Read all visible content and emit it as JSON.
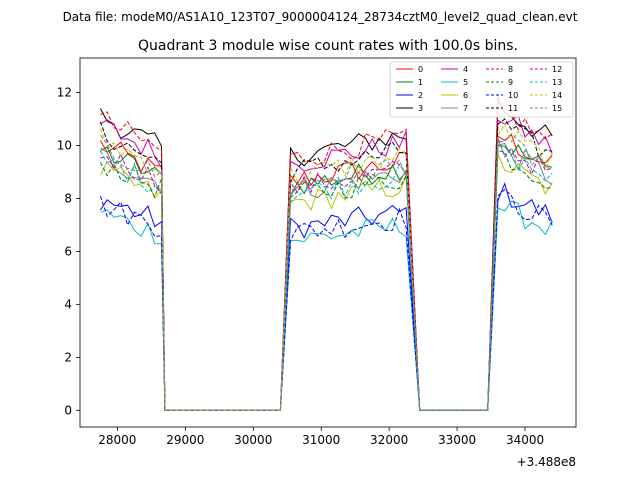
{
  "suptitle": "Data file: modeM0/AS1A10_123T07_9000004124_28734cztM0_level2_quad_clean.evt",
  "chart_data": {
    "type": "line",
    "title": "Quadrant 3 module wise count rates with 100.0s bins.",
    "xlabel": "",
    "ylabel": "",
    "x_offset_label": "+3.488e8",
    "xlim": [
      27450,
      34750
    ],
    "ylim": [
      -0.63,
      13.3
    ],
    "xticks": [
      28000,
      29000,
      30000,
      31000,
      32000,
      33000,
      34000
    ],
    "xtick_labels": [
      "28000",
      "29000",
      "30000",
      "31000",
      "32000",
      "33000",
      "34000"
    ],
    "yticks": [
      0,
      2,
      4,
      6,
      8,
      10,
      12
    ],
    "ytick_labels": [
      "0",
      "2",
      "4",
      "6",
      "8",
      "10",
      "12"
    ],
    "grid": false,
    "legend_position": "top-right",
    "series": [
      {
        "name": "0",
        "color": "#ff0000",
        "dash": "solid",
        "level": 9.3
      },
      {
        "name": "1",
        "color": "#008000",
        "dash": "solid",
        "level": 9.1
      },
      {
        "name": "2",
        "color": "#0000ff",
        "dash": "solid",
        "level": 7.4
      },
      {
        "name": "3",
        "color": "#000000",
        "dash": "solid",
        "level": 10.3
      },
      {
        "name": "4",
        "color": "#bf00bf",
        "dash": "solid",
        "level": 10.0
      },
      {
        "name": "5",
        "color": "#00bfbf",
        "dash": "solid",
        "level": 6.9
      },
      {
        "name": "6",
        "color": "#bfbf00",
        "dash": "solid",
        "level": 8.4
      },
      {
        "name": "7",
        "color": "#808080",
        "dash": "solid",
        "level": 8.9
      },
      {
        "name": "8",
        "color": "#ff0000",
        "dash": "dashed",
        "level": 10.2
      },
      {
        "name": "9",
        "color": "#008000",
        "dash": "dashed",
        "level": 8.7
      },
      {
        "name": "10",
        "color": "#0000ff",
        "dash": "dashed",
        "level": 7.2
      },
      {
        "name": "11",
        "color": "#000000",
        "dash": "dashed",
        "level": 9.7
      },
      {
        "name": "12",
        "color": "#bf00bf",
        "dash": "dashed",
        "level": 9.0
      },
      {
        "name": "13",
        "color": "#00bfbf",
        "dash": "dashed",
        "level": 8.8
      },
      {
        "name": "14",
        "color": "#bfbf00",
        "dash": "dashed",
        "level": 9.5
      },
      {
        "name": "15",
        "color": "#808080",
        "dash": "dashed",
        "level": 9.2
      }
    ],
    "segments": [
      {
        "from": 27750,
        "to": 28650,
        "state": "active"
      },
      {
        "from": 28700,
        "to": 30450,
        "state": "zero"
      },
      {
        "from": 30550,
        "to": 32250,
        "state": "active"
      },
      {
        "from": 32450,
        "to": 33500,
        "state": "zero"
      },
      {
        "from": 33600,
        "to": 34450,
        "state": "active"
      }
    ]
  }
}
